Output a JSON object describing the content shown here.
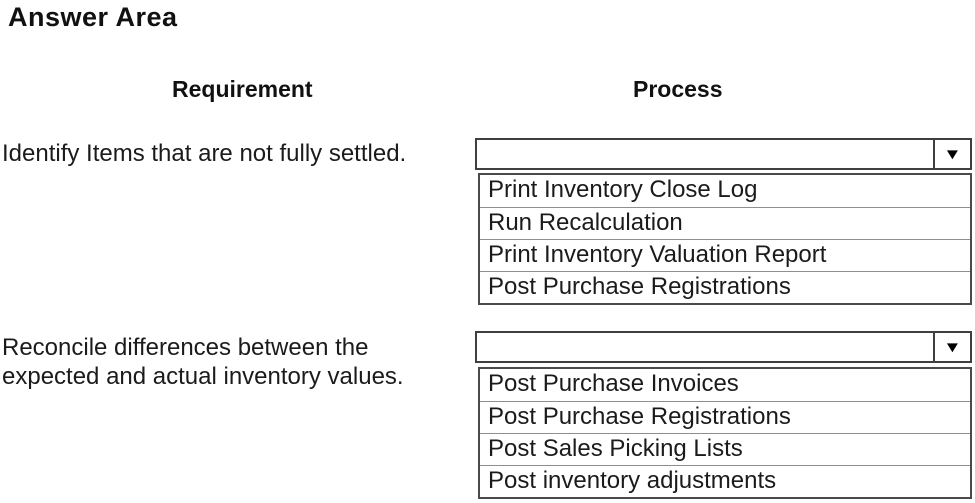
{
  "page": {
    "title": "Answer Area"
  },
  "columns": {
    "requirement_header": "Requirement",
    "process_header": "Process"
  },
  "icons": {
    "dropdown_arrow": "▼"
  },
  "colors": {
    "background": "#ffffff",
    "text": "#1b1b1b",
    "border_dark": "#3f3f3f",
    "row_separator": "#8f8f8f"
  },
  "rows": [
    {
      "requirement": "Identify Items that are not fully settled.",
      "dropdown": {
        "selected_value": "",
        "options": [
          "Print Inventory Close Log",
          "Run Recalculation",
          "Print Inventory Valuation Report",
          "Post Purchase Registrations"
        ]
      }
    },
    {
      "requirement": "Reconcile differences between the expected and actual inventory values.",
      "dropdown": {
        "selected_value": "",
        "options": [
          "Post Purchase Invoices",
          "Post Purchase Registrations",
          "Post Sales Picking Lists",
          "Post inventory adjustments"
        ]
      }
    }
  ]
}
